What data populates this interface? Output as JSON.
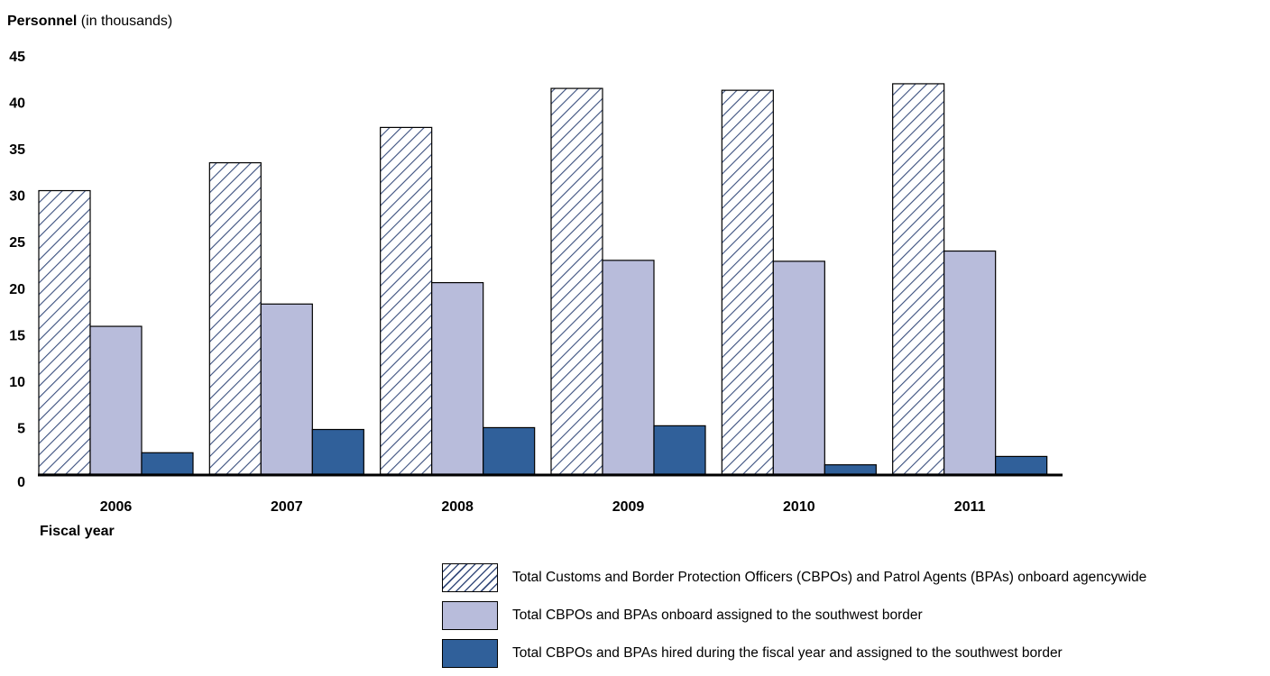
{
  "chart_data": {
    "type": "bar",
    "ylabel_bold": "Personnel",
    "ylabel_rest": " (in thousands)",
    "xlabel": "Fiscal year",
    "categories": [
      "2006",
      "2007",
      "2008",
      "2009",
      "2010",
      "2011"
    ],
    "yticks": [
      "0",
      "5",
      "10",
      "15",
      "20",
      "25",
      "30",
      "35",
      "40",
      "45"
    ],
    "ylim": [
      0,
      45
    ],
    "grid": false,
    "legend_position": "bottom-right",
    "series": [
      {
        "name": "Total Customs and Border Protection Officers (CBPOs) and Patrol Agents (BPAs) onboard agencywide",
        "values": [
          30.5,
          33.5,
          37.3,
          41.5,
          41.3,
          42.0
        ],
        "color": "#3a4f7e",
        "style": "hatch"
      },
      {
        "name": "Total CBPOs and BPAs onboard assigned to the southwest border",
        "values": [
          15.9,
          18.3,
          20.6,
          23.0,
          22.9,
          24.0
        ],
        "color": "#b8bcdb",
        "style": "solid"
      },
      {
        "name": "Total CBPOs and BPAs hired during the fiscal year and assigned to the southwest border",
        "values": [
          2.3,
          4.8,
          5.0,
          5.2,
          1.0,
          1.9
        ],
        "color": "#30609a",
        "style": "solid"
      }
    ]
  }
}
